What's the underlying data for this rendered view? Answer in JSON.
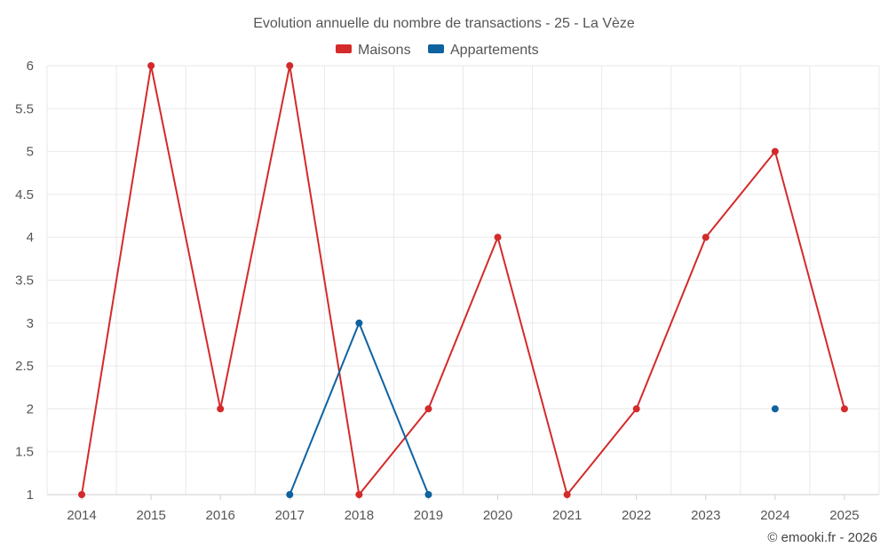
{
  "chart_data": {
    "type": "line",
    "title": "Evolution annuelle du nombre de transactions - 25 - La Vèze",
    "categories": [
      "2014",
      "2015",
      "2016",
      "2017",
      "2018",
      "2019",
      "2020",
      "2021",
      "2022",
      "2023",
      "2024",
      "2025"
    ],
    "y_ticks": [
      "1",
      "1.5",
      "2",
      "2.5",
      "3",
      "3.5",
      "4",
      "4.5",
      "5",
      "5.5",
      "6"
    ],
    "ylim": [
      1,
      6
    ],
    "grid": true,
    "legend_position": "top-center",
    "series": [
      {
        "name": "Maisons",
        "color": "#d42a2a",
        "values": [
          1,
          6,
          2,
          6,
          1,
          2,
          4,
          1,
          2,
          4,
          5,
          2
        ]
      },
      {
        "name": "Appartements",
        "color": "#0f62a0",
        "values": [
          null,
          null,
          null,
          1,
          3,
          1,
          null,
          null,
          null,
          null,
          2,
          null
        ]
      }
    ]
  },
  "credit": "© emooki.fr - 2026"
}
